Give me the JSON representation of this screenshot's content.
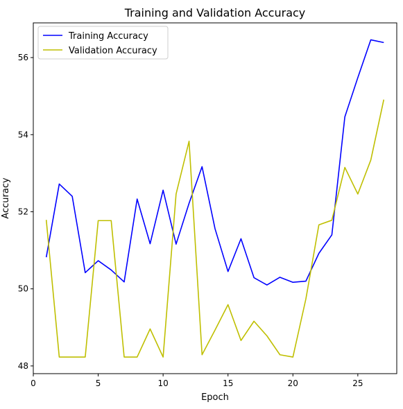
{
  "chart_data": {
    "type": "line",
    "title": "Training and Validation Accuracy",
    "xlabel": "Epoch",
    "ylabel": "Accuracy",
    "xlim": [
      0.0,
      28.0
    ],
    "ylim": [
      47.8,
      56.9
    ],
    "x_ticks": [
      0,
      5,
      10,
      15,
      20,
      25
    ],
    "y_ticks": [
      48,
      50,
      52,
      54,
      56
    ],
    "grid": false,
    "legend_position": "top-left",
    "x": [
      1,
      2,
      3,
      4,
      5,
      6,
      7,
      8,
      9,
      10,
      11,
      12,
      13,
      14,
      15,
      16,
      17,
      18,
      19,
      20,
      21,
      22,
      23,
      24,
      25,
      26,
      27
    ],
    "series": [
      {
        "name": "Training Accuracy",
        "color": "#0000ff",
        "values": [
          50.82,
          52.72,
          52.4,
          50.42,
          50.73,
          50.49,
          50.18,
          52.33,
          51.17,
          52.56,
          51.16,
          52.22,
          53.17,
          51.56,
          50.45,
          51.3,
          50.29,
          50.1,
          50.3,
          50.17,
          50.2,
          50.92,
          51.4,
          54.46,
          55.48,
          56.46,
          56.39
        ]
      },
      {
        "name": "Validation Accuracy",
        "color": "#bfbf00",
        "values": [
          51.79,
          48.23,
          48.23,
          48.23,
          51.77,
          51.77,
          48.23,
          48.23,
          48.96,
          48.23,
          52.46,
          53.83,
          48.29,
          48.93,
          49.59,
          48.66,
          49.16,
          48.78,
          48.29,
          48.23,
          49.74,
          51.66,
          51.78,
          53.15,
          52.46,
          53.34,
          54.91
        ]
      }
    ]
  }
}
